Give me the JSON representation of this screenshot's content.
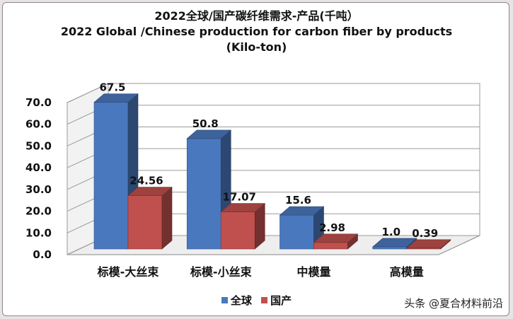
{
  "chart_data": {
    "type": "bar",
    "title_lines": [
      "2022全球/国产碳纤维需求-产品(千吨）",
      "2022 Global /Chinese production for carbon fiber by products",
      "(Kilo-ton)"
    ],
    "categories": [
      "标模-大丝束",
      "标模-小丝束",
      "中模量",
      "高模量"
    ],
    "series": [
      {
        "name": "全球",
        "values": [
          67.5,
          50.8,
          15.6,
          1.0
        ],
        "labels": [
          "67.5",
          "50.8",
          "15.6",
          "1.0"
        ],
        "color": "#4a78be"
      },
      {
        "name": "国产",
        "values": [
          24.56,
          17.07,
          2.98,
          0.39
        ],
        "labels": [
          "24.56",
          "17.07",
          "2.98",
          "0.39"
        ],
        "color": "#c0504d"
      }
    ],
    "yticks": [
      "0.0",
      "10.0",
      "20.0",
      "30.0",
      "40.0",
      "50.0",
      "60.0",
      "70.0"
    ],
    "ylim": [
      0,
      70
    ],
    "grid": true,
    "legend_position": "bottom",
    "style": "3d-clustered-column"
  },
  "watermark": "头条 @夏合材料前沿"
}
